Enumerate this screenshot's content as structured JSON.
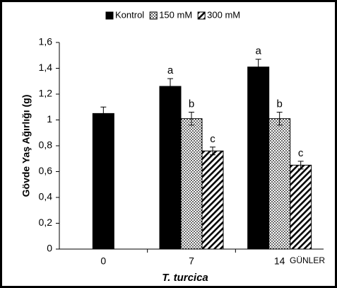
{
  "chart_data": {
    "type": "bar",
    "ylabel": "Gövde Yaş Ağırlığı (g)",
    "xlabel": "T. turcica",
    "xunit_label": "GÜNLER",
    "categories": [
      "0",
      "7",
      "14"
    ],
    "series": [
      {
        "name": "Kontrol",
        "color": "#000000",
        "pattern": "solid",
        "values": [
          1.05,
          1.26,
          1.41
        ],
        "errors": [
          0.05,
          0.06,
          0.06
        ],
        "letters": [
          null,
          "a",
          "a"
        ]
      },
      {
        "name": "150 mM",
        "color": "#000000",
        "pattern": "dots",
        "values": [
          null,
          1.01,
          1.01
        ],
        "errors": [
          null,
          0.05,
          0.05
        ],
        "letters": [
          null,
          "b",
          "b"
        ]
      },
      {
        "name": "300 mM",
        "color": "#000000",
        "pattern": "hatch",
        "values": [
          null,
          0.76,
          0.65
        ],
        "errors": [
          null,
          0.03,
          0.03
        ],
        "letters": [
          null,
          "c",
          "c"
        ]
      }
    ],
    "ylim": [
      0,
      1.6
    ],
    "yticks": [
      0,
      {
        "value": 0.2,
        "label": "0,2"
      },
      {
        "value": 0.4,
        "label": "0,4"
      },
      {
        "value": 0.6,
        "label": "0,6"
      },
      {
        "value": 0.8,
        "label": "0,8"
      },
      1,
      {
        "value": 1.2,
        "label": "1,2"
      },
      {
        "value": 1.4,
        "label": "1,4"
      },
      {
        "value": 1.6,
        "label": "1,6"
      }
    ],
    "legend": "top"
  }
}
